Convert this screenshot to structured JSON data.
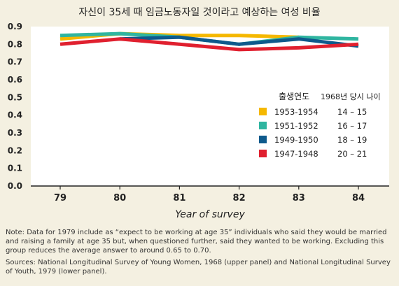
{
  "chart_data": {
    "type": "line",
    "title": "자신이 35세 때 임금노동자일 것이라고 예상하는 여성 비율",
    "xlabel": "Year of survey",
    "ylabel": "",
    "x": [
      "79",
      "80",
      "81",
      "82",
      "83",
      "84"
    ],
    "ylim": [
      0,
      0.9
    ],
    "yticks": [
      "0.0",
      "0.1",
      "0.2",
      "0.3",
      "0.4",
      "0.5",
      "0.6",
      "0.7",
      "0.8",
      "0.9"
    ],
    "grid": false,
    "legend_position": "right",
    "legend_headers": {
      "cohort": "출생연도",
      "age": "1968년 당시 나이"
    },
    "series": [
      {
        "name": "1953-1954",
        "age": "14 – 15",
        "color": "#f5b800",
        "values": [
          0.83,
          0.86,
          0.85,
          0.85,
          0.84,
          null
        ]
      },
      {
        "name": "1951-1952",
        "age": "16 – 17",
        "color": "#2fb5a0",
        "values": [
          0.85,
          0.86,
          0.84,
          0.8,
          0.84,
          0.83
        ]
      },
      {
        "name": "1949-1950",
        "age": "18 – 19",
        "color": "#0e5a8c",
        "values": [
          null,
          0.83,
          0.84,
          0.8,
          0.83,
          0.79
        ]
      },
      {
        "name": "1947-1948",
        "age": "20 – 21",
        "color": "#e0202f",
        "values": [
          0.8,
          0.83,
          0.8,
          0.77,
          0.78,
          0.8
        ]
      }
    ]
  },
  "notes": {
    "note": "Note: Data for 1979 include as “expect to be working at age 35” individuals who said they would be married and raising a family at age 35 but, when questioned further, said they wanted to be working. Excluding this group reduces the average answer to around 0.65 to 0.70.",
    "sources": "Sources: National Longitudinal Survey of Young Women, 1968 (upper panel) and National Longitudinal Survey of Youth, 1979 (lower panel)."
  }
}
